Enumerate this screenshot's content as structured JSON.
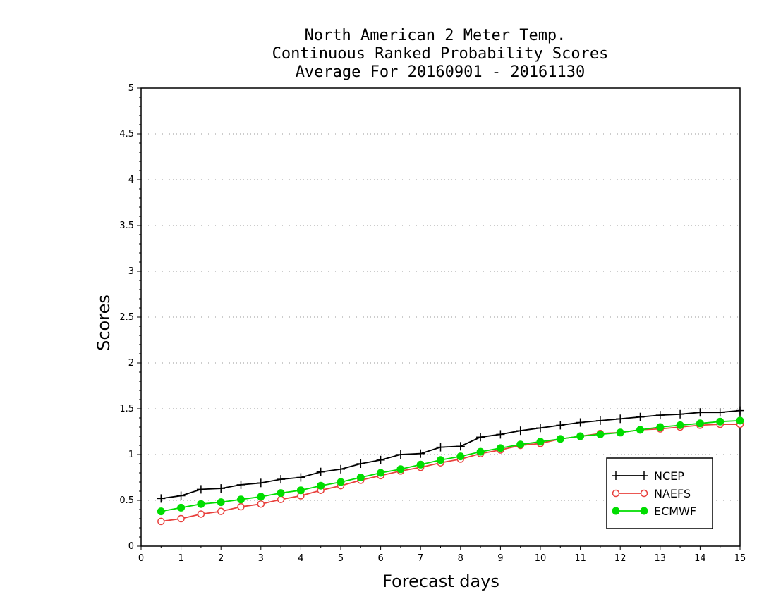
{
  "chart_data": {
    "type": "line",
    "title_lines": [
      "North American 2 Meter Temp.",
      "Continuous Ranked Probability Scores",
      "Average For 20160901 - 20161130"
    ],
    "xlabel": "Forecast days",
    "ylabel": "Scores",
    "xlim": [
      0,
      15
    ],
    "ylim": [
      0,
      5
    ],
    "x_ticks": [
      "0",
      "1",
      "2",
      "3",
      "4",
      "5",
      "6",
      "7",
      "8",
      "9",
      "10",
      "11",
      "12",
      "13",
      "14",
      "15"
    ],
    "y_ticks": [
      "0",
      "0.5",
      "1",
      "1.5",
      "2",
      "2.5",
      "3",
      "3.5",
      "4",
      "4.5",
      "5"
    ],
    "grid": "horizontal dotted",
    "legend_position": "bottom-right",
    "x": [
      0.5,
      1,
      1.5,
      2,
      2.5,
      3,
      3.5,
      4,
      4.5,
      5,
      5.5,
      6,
      6.5,
      7,
      7.5,
      8,
      8.5,
      9,
      9.5,
      10,
      10.5,
      11,
      11.5,
      12,
      12.5,
      13,
      13.5,
      14,
      14.5,
      15
    ],
    "series": [
      {
        "name": "NCEP",
        "color": "#000000",
        "marker": "plus",
        "values": [
          0.52,
          0.55,
          0.62,
          0.63,
          0.67,
          0.69,
          0.73,
          0.75,
          0.81,
          0.84,
          0.9,
          0.94,
          1.0,
          1.01,
          1.08,
          1.09,
          1.19,
          1.22,
          1.26,
          1.29,
          1.32,
          1.35,
          1.37,
          1.39,
          1.41,
          1.43,
          1.44,
          1.46,
          1.46,
          1.48
        ]
      },
      {
        "name": "NAEFS",
        "color": "#e8403c",
        "marker": "open-circle",
        "values": [
          0.27,
          0.3,
          0.35,
          0.38,
          0.43,
          0.46,
          0.51,
          0.55,
          0.61,
          0.66,
          0.72,
          0.77,
          0.82,
          0.86,
          0.91,
          0.95,
          1.01,
          1.05,
          1.1,
          1.12,
          1.17,
          1.2,
          1.23,
          1.24,
          1.27,
          1.28,
          1.3,
          1.32,
          1.33,
          1.33
        ]
      },
      {
        "name": "ECMWF",
        "color": "#00dd00",
        "marker": "filled-circle",
        "values": [
          0.38,
          0.42,
          0.46,
          0.48,
          0.51,
          0.54,
          0.58,
          0.61,
          0.66,
          0.7,
          0.75,
          0.8,
          0.84,
          0.89,
          0.94,
          0.98,
          1.03,
          1.07,
          1.11,
          1.14,
          1.17,
          1.2,
          1.22,
          1.24,
          1.27,
          1.3,
          1.32,
          1.34,
          1.36,
          1.37
        ]
      }
    ]
  }
}
